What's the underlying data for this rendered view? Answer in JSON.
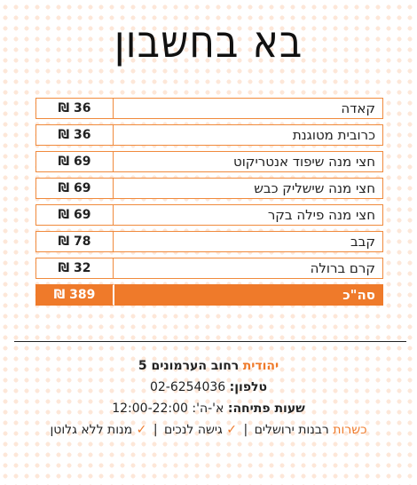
{
  "title": "בא בחשבון",
  "bill": {
    "items": [
      {
        "name": "קאדה",
        "price": "36 ₪"
      },
      {
        "name": "כרובית מטוגנת",
        "price": "36 ₪"
      },
      {
        "name": "חצי מנה שיפוד אנטריקוט",
        "price": "69 ₪"
      },
      {
        "name": "חצי מנה שישליק כבש",
        "price": "69 ₪"
      },
      {
        "name": "חצי מנה פילה בקר",
        "price": "69 ₪"
      },
      {
        "name": "קבב",
        "price": "78 ₪"
      },
      {
        "name": "קרם ברולה",
        "price": "32 ₪"
      }
    ],
    "total": {
      "label": "סה\"כ",
      "price": "389 ₪"
    }
  },
  "info": {
    "address_area": "יהודית",
    "address_street": "רחוב הערמונים 5",
    "phone_label": "טלפון:",
    "phone_value": "02-6254036",
    "hours_label": "שעות פתיחה:",
    "hours_value": "א'-ה': 12:00-22:00",
    "kashrut_label": "כשרות",
    "kashrut_value": "רבנות ירושלים",
    "accessibility": "גישה לנכים",
    "gluten_free": "מנות ללא גלוטן",
    "check_symbol": "✓",
    "separator": "|"
  },
  "colors": {
    "accent": "#ef7a2a",
    "dots": "#fde7d8"
  }
}
